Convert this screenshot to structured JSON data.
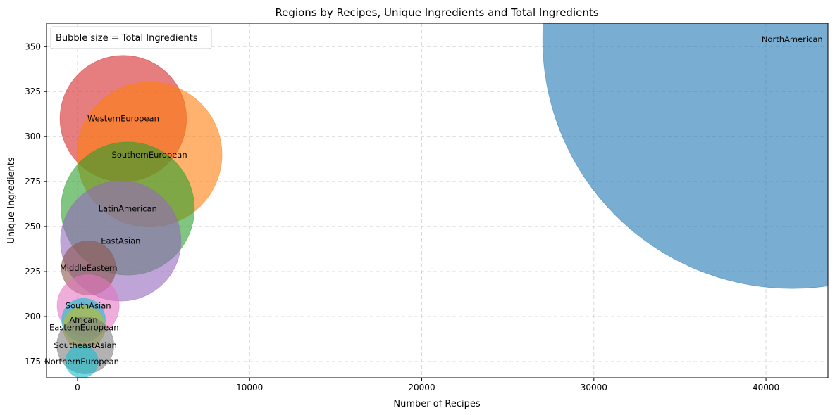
{
  "chart_data": {
    "type": "scatter",
    "title": "Regions by Recipes, Unique Ingredients and Total Ingredients",
    "xlabel": "Number of Recipes",
    "ylabel": "Unique Ingredients",
    "xlim": [
      -1800,
      43600
    ],
    "ylim": [
      166,
      363
    ],
    "xticks": [
      0,
      10000,
      20000,
      30000,
      40000
    ],
    "yticks": [
      175,
      200,
      225,
      250,
      275,
      300,
      325,
      350
    ],
    "grid": true,
    "legend": {
      "text": "Bubble size = Total Ingredients",
      "placement": "top-left"
    },
    "bubble_size_meaning": "Total Ingredients",
    "points": [
      {
        "label": "NorthAmerican",
        "x": 41524,
        "y": 354,
        "size": 420000,
        "color": "#1f77b4"
      },
      {
        "label": "WesternEuropean",
        "x": 2659,
        "y": 310,
        "size": 27000,
        "color": "#d62728"
      },
      {
        "label": "SouthernEuropean",
        "x": 4180,
        "y": 290,
        "size": 35500,
        "color": "#ff7f0e"
      },
      {
        "label": "LatinAmerican",
        "x": 2917,
        "y": 260,
        "size": 30000,
        "color": "#2ca02c"
      },
      {
        "label": "EastAsian",
        "x": 2512,
        "y": 242,
        "size": 24500,
        "color": "#9467bd"
      },
      {
        "label": "MiddleEastern",
        "x": 645,
        "y": 227,
        "size": 5000,
        "color": "#8c564b"
      },
      {
        "label": "SouthAsian",
        "x": 621,
        "y": 206,
        "size": 6500,
        "color": "#e377c2"
      },
      {
        "label": "African",
        "x": 352,
        "y": 198,
        "size": 3200,
        "color": "#17becf"
      },
      {
        "label": "EasternEuropean",
        "x": 381,
        "y": 194,
        "size": 3000,
        "color": "#bcbd22"
      },
      {
        "label": "SoutheastAsian",
        "x": 457,
        "y": 184,
        "size": 5500,
        "color": "#7f7f7f"
      },
      {
        "label": "NorthernEuropean",
        "x": 250,
        "y": 175,
        "size": 1800,
        "color": "#17becf"
      }
    ]
  }
}
